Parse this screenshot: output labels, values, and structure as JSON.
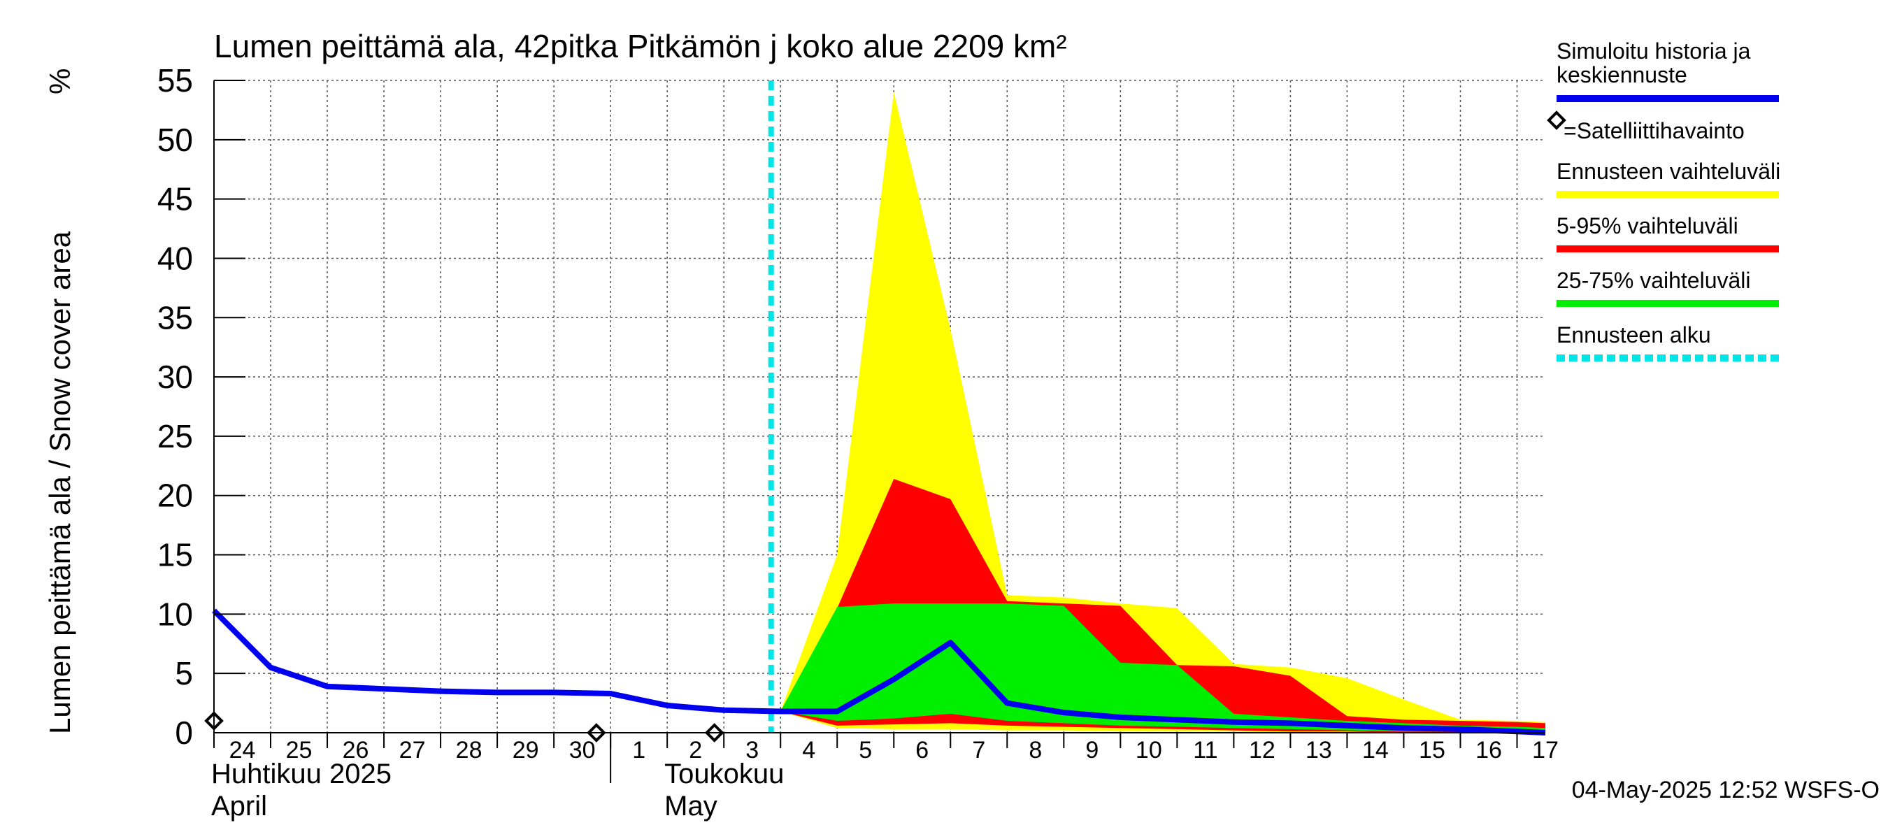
{
  "chart_data": {
    "type": "area",
    "title": "Lumen peittämä ala, 42pitka Pitkämön j koko alue 2209 km²",
    "ylabel": "Lumen peittämä ala / Snow cover area",
    "yunit": "%",
    "ylim": [
      0,
      55
    ],
    "yticks": [
      0,
      5,
      10,
      15,
      20,
      25,
      30,
      35,
      40,
      45,
      50,
      55
    ],
    "xlim": [
      "2025-04-24",
      "2025-05-17T12:00"
    ],
    "xtick_dates": [
      "2025-04-24",
      "2025-04-25",
      "2025-04-26",
      "2025-04-27",
      "2025-04-28",
      "2025-04-29",
      "2025-04-30",
      "2025-05-01",
      "2025-05-02",
      "2025-05-03",
      "2025-05-04",
      "2025-05-05",
      "2025-05-06",
      "2025-05-07",
      "2025-05-08",
      "2025-05-09",
      "2025-05-10",
      "2025-05-11",
      "2025-05-12",
      "2025-05-13",
      "2025-05-14",
      "2025-05-15",
      "2025-05-16",
      "2025-05-17"
    ],
    "xtick_labels": [
      "24",
      "25",
      "26",
      "27",
      "28",
      "29",
      "30",
      "1",
      "2",
      "3",
      "4",
      "5",
      "6",
      "7",
      "8",
      "9",
      "10",
      "11",
      "12",
      "13",
      "14",
      "15",
      "16",
      "17"
    ],
    "month_labels": [
      {
        "date": "2025-04-24",
        "fi": "Huhtikuu  2025",
        "en": "April"
      },
      {
        "date": "2025-05-02",
        "fi": "Toukokuu",
        "en": "May"
      }
    ],
    "month_separator": "2025-05-01",
    "forecast_start": "2025-05-03T20:00",
    "grid": true,
    "legend_position": "right",
    "legend": [
      {
        "label": "Simuloitu historia ja",
        "label2": "keskiennuste",
        "color": "#0000ee",
        "style": "line"
      },
      {
        "label": "=Satelliittihavainto",
        "color": "#000000",
        "style": "marker"
      },
      {
        "label": "Ennusteen vaihteluväli",
        "color": "#ffff00",
        "style": "line"
      },
      {
        "label": "5-95% vaihteluväli",
        "color": "#ff0000",
        "style": "line"
      },
      {
        "label": "25-75% vaihteluväli",
        "color": "#00ee00",
        "style": "line"
      },
      {
        "label": "Ennusteen alku",
        "color": "#00e5e5",
        "style": "dashed"
      }
    ],
    "series": [
      {
        "name": "Simuloitu historia ja keskiennuste",
        "color": "#0000ee",
        "x": [
          "2025-04-24",
          "2025-04-25",
          "2025-04-26",
          "2025-04-27",
          "2025-04-28",
          "2025-04-29",
          "2025-04-30",
          "2025-05-01",
          "2025-05-02",
          "2025-05-03",
          "2025-05-04",
          "2025-05-05",
          "2025-05-06",
          "2025-05-07",
          "2025-05-08",
          "2025-05-09",
          "2025-05-10",
          "2025-05-11",
          "2025-05-12",
          "2025-05-13",
          "2025-05-14",
          "2025-05-15",
          "2025-05-16",
          "2025-05-17",
          "2025-05-17T12:00"
        ],
        "y": [
          10.3,
          5.5,
          3.9,
          3.7,
          3.5,
          3.4,
          3.4,
          3.3,
          2.3,
          1.9,
          1.8,
          1.8,
          4.5,
          7.6,
          2.5,
          1.7,
          1.3,
          1.1,
          0.9,
          0.8,
          0.6,
          0.4,
          0.3,
          0.1,
          0.0
        ]
      },
      {
        "name": "Ennusteen vaihteluväli",
        "color": "#ffff00",
        "x": [
          "2025-05-04",
          "2025-05-05",
          "2025-05-06",
          "2025-05-07",
          "2025-05-08",
          "2025-05-09",
          "2025-05-10",
          "2025-05-11",
          "2025-05-12",
          "2025-05-13",
          "2025-05-14",
          "2025-05-15",
          "2025-05-16",
          "2025-05-17",
          "2025-05-17T12:00"
        ],
        "upper": [
          1.8,
          15.0,
          54.0,
          34.0,
          11.6,
          11.4,
          10.9,
          10.5,
          5.8,
          5.5,
          4.6,
          2.8,
          1.1,
          1.0,
          0.9
        ],
        "lower": [
          1.8,
          0.4,
          0.3,
          0.3,
          0.2,
          0.2,
          0.1,
          0.1,
          0.1,
          0.0,
          0.0,
          0.0,
          0.0,
          0.0,
          0.0
        ]
      },
      {
        "name": "5-95% vaihteluväli",
        "color": "#ff0000",
        "x": [
          "2025-05-04",
          "2025-05-05",
          "2025-05-06",
          "2025-05-07",
          "2025-05-08",
          "2025-05-09",
          "2025-05-10",
          "2025-05-11",
          "2025-05-12",
          "2025-05-13",
          "2025-05-14",
          "2025-05-15",
          "2025-05-16",
          "2025-05-17",
          "2025-05-17T12:00"
        ],
        "upper": [
          1.8,
          10.5,
          21.4,
          19.7,
          11.1,
          10.9,
          10.7,
          5.7,
          5.6,
          4.8,
          1.4,
          1.1,
          1.0,
          0.9,
          0.8
        ],
        "lower": [
          1.8,
          0.6,
          0.7,
          0.8,
          0.6,
          0.5,
          0.4,
          0.3,
          0.2,
          0.1,
          0.1,
          0.0,
          0.0,
          0.0,
          0.0
        ]
      },
      {
        "name": "25-75% vaihteluväli",
        "color": "#00ee00",
        "x": [
          "2025-05-04",
          "2025-05-05",
          "2025-05-06",
          "2025-05-07",
          "2025-05-08",
          "2025-05-09",
          "2025-05-10",
          "2025-05-11",
          "2025-05-12",
          "2025-05-13",
          "2025-05-14",
          "2025-05-15",
          "2025-05-16",
          "2025-05-17",
          "2025-05-17T12:00"
        ],
        "upper": [
          1.8,
          10.6,
          10.9,
          10.9,
          10.9,
          10.7,
          5.9,
          5.7,
          1.6,
          1.3,
          1.0,
          0.8,
          0.6,
          0.5,
          0.4
        ],
        "lower": [
          1.8,
          1.0,
          1.2,
          1.6,
          1.0,
          0.8,
          0.6,
          0.5,
          0.4,
          0.3,
          0.2,
          0.1,
          0.1,
          0.0,
          0.0
        ]
      }
    ],
    "satellite_observations": [
      {
        "x": "2025-04-24",
        "y": 1.0
      },
      {
        "x": "2025-04-30T18:00",
        "y": 0.0
      },
      {
        "x": "2025-05-02T20:00",
        "y": 0.0
      }
    ]
  },
  "footer": {
    "timestamp": "04-May-2025 12:52 WSFS-O"
  }
}
